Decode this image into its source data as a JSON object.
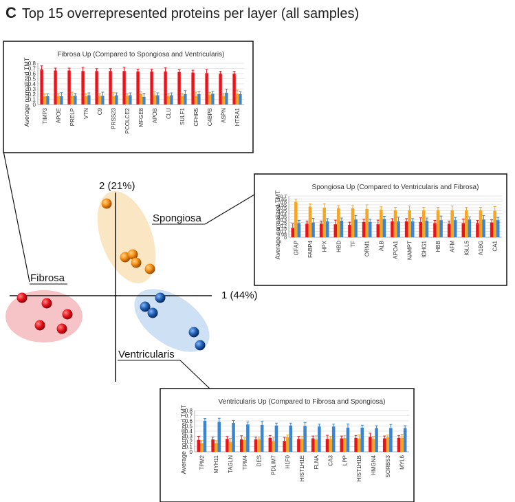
{
  "panel": {
    "letter": "C",
    "title": "Top 15 overrepresented proteins per layer (all samples)"
  },
  "pca": {
    "axis1_label": "1 (44%)",
    "axis2_label": "2 (21%)",
    "group_labels": {
      "fibrosa": "Fibrosa",
      "spongiosa": "Spongiosa",
      "ventricularis": "Ventricularis"
    },
    "colors": {
      "fibrosa": "#e8141c",
      "spongiosa": "#f28c0f",
      "ventricularis": "#1f5fb0",
      "fibrosa_ellipse": "#f4b9bd",
      "spongiosa_ellipse": "#fbe3bc",
      "ventricularis_ellipse": "#c9def3"
    }
  },
  "chart_data": [
    {
      "type": "bar",
      "title": "Fibrosa Up (Compared to Spongiosa and Ventricularis)",
      "ylabel": "Average normalized TMT",
      "ylim": [
        0,
        0.8
      ],
      "yticks": [
        "0",
        "0.1",
        "0.2",
        "0.3",
        "0.4",
        "0.5",
        "0.6",
        "0.7",
        "0.8"
      ],
      "categories": [
        "TIMP3",
        "APOE",
        "PRELP",
        "VTN",
        "C9",
        "PRSS23",
        "PCOLCE2",
        "MFGE8",
        "APOB",
        "CLU",
        "SULF1",
        "CFHR5",
        "C4BPB",
        "ASPN",
        "HTRA1"
      ],
      "series": [
        {
          "color": "#e8141c",
          "values": [
            0.68,
            0.66,
            0.66,
            0.65,
            0.65,
            0.65,
            0.65,
            0.64,
            0.64,
            0.64,
            0.63,
            0.62,
            0.61,
            0.6,
            0.6
          ]
        },
        {
          "color": "#f6a623",
          "values": [
            0.16,
            0.17,
            0.17,
            0.16,
            0.17,
            0.16,
            0.17,
            0.2,
            0.18,
            0.17,
            0.17,
            0.17,
            0.19,
            0.17,
            0.21
          ]
        },
        {
          "color": "#3a86d1",
          "values": [
            0.16,
            0.16,
            0.17,
            0.18,
            0.17,
            0.18,
            0.18,
            0.15,
            0.18,
            0.18,
            0.2,
            0.2,
            0.21,
            0.23,
            0.2
          ]
        }
      ]
    },
    {
      "type": "bar",
      "title": "Spongiosa Up (Compared to Ventricularis and Fibrosa)",
      "ylabel": "Average normalized TMT",
      "ylim": [
        0,
        0.7
      ],
      "yticks": [
        "0",
        "0.05",
        "0.1",
        "0.15",
        "0.2",
        "0.25",
        "0.3",
        "0.35",
        "0.4",
        "0.45",
        "0.5",
        "0.55",
        "0.6",
        "0.65",
        "0.7"
      ],
      "categories": [
        "GFAP",
        "FABP4",
        "HPX",
        "HBD",
        "TF",
        "ORM1",
        "ALB",
        "APOA1",
        "NAMPT",
        "IGHG1",
        "HBB",
        "AFM",
        "IGLL5",
        "A1BG",
        "CA1"
      ],
      "series": [
        {
          "color": "#e8141c",
          "values": [
            0.16,
            0.23,
            0.23,
            0.22,
            0.21,
            0.26,
            0.22,
            0.27,
            0.27,
            0.26,
            0.24,
            0.23,
            0.24,
            0.24,
            0.25
          ]
        },
        {
          "color": "#f6a623",
          "values": [
            0.6,
            0.52,
            0.5,
            0.49,
            0.49,
            0.48,
            0.47,
            0.46,
            0.46,
            0.46,
            0.46,
            0.46,
            0.46,
            0.46,
            0.45
          ]
        },
        {
          "color": "#3a86d1",
          "values": [
            0.24,
            0.25,
            0.27,
            0.28,
            0.3,
            0.26,
            0.31,
            0.27,
            0.27,
            0.28,
            0.29,
            0.29,
            0.3,
            0.3,
            0.29
          ]
        }
      ]
    },
    {
      "type": "bar",
      "title": "Ventricularis Up (Compared to Fibrosa and Spongiosa)",
      "ylabel": "Average normalized TMT",
      "ylim": [
        0,
        0.8
      ],
      "yticks": [
        "0",
        "0.1",
        "0.2",
        "0.3",
        "0.4",
        "0.5",
        "0.6",
        "0.7",
        "0.8"
      ],
      "categories": [
        "TPM2",
        "MYH11",
        "TAGLN",
        "TPM4",
        "DES",
        "PDLIM7",
        "H1F0",
        "HIST1H1E",
        "FLNA",
        "CA3",
        "LPP",
        "HIST1H1B",
        "HMGN4",
        "SORBS3",
        "MYL6"
      ],
      "series": [
        {
          "color": "#e8141c",
          "values": [
            0.23,
            0.24,
            0.25,
            0.24,
            0.24,
            0.27,
            0.21,
            0.25,
            0.26,
            0.25,
            0.26,
            0.27,
            0.29,
            0.26,
            0.27
          ]
        },
        {
          "color": "#f6a623",
          "values": [
            0.17,
            0.17,
            0.19,
            0.23,
            0.24,
            0.21,
            0.28,
            0.25,
            0.24,
            0.25,
            0.27,
            0.26,
            0.25,
            0.28,
            0.27
          ]
        },
        {
          "color": "#3a86d1",
          "values": [
            0.6,
            0.58,
            0.56,
            0.53,
            0.52,
            0.51,
            0.51,
            0.5,
            0.49,
            0.49,
            0.47,
            0.47,
            0.46,
            0.46,
            0.46
          ]
        }
      ]
    }
  ]
}
